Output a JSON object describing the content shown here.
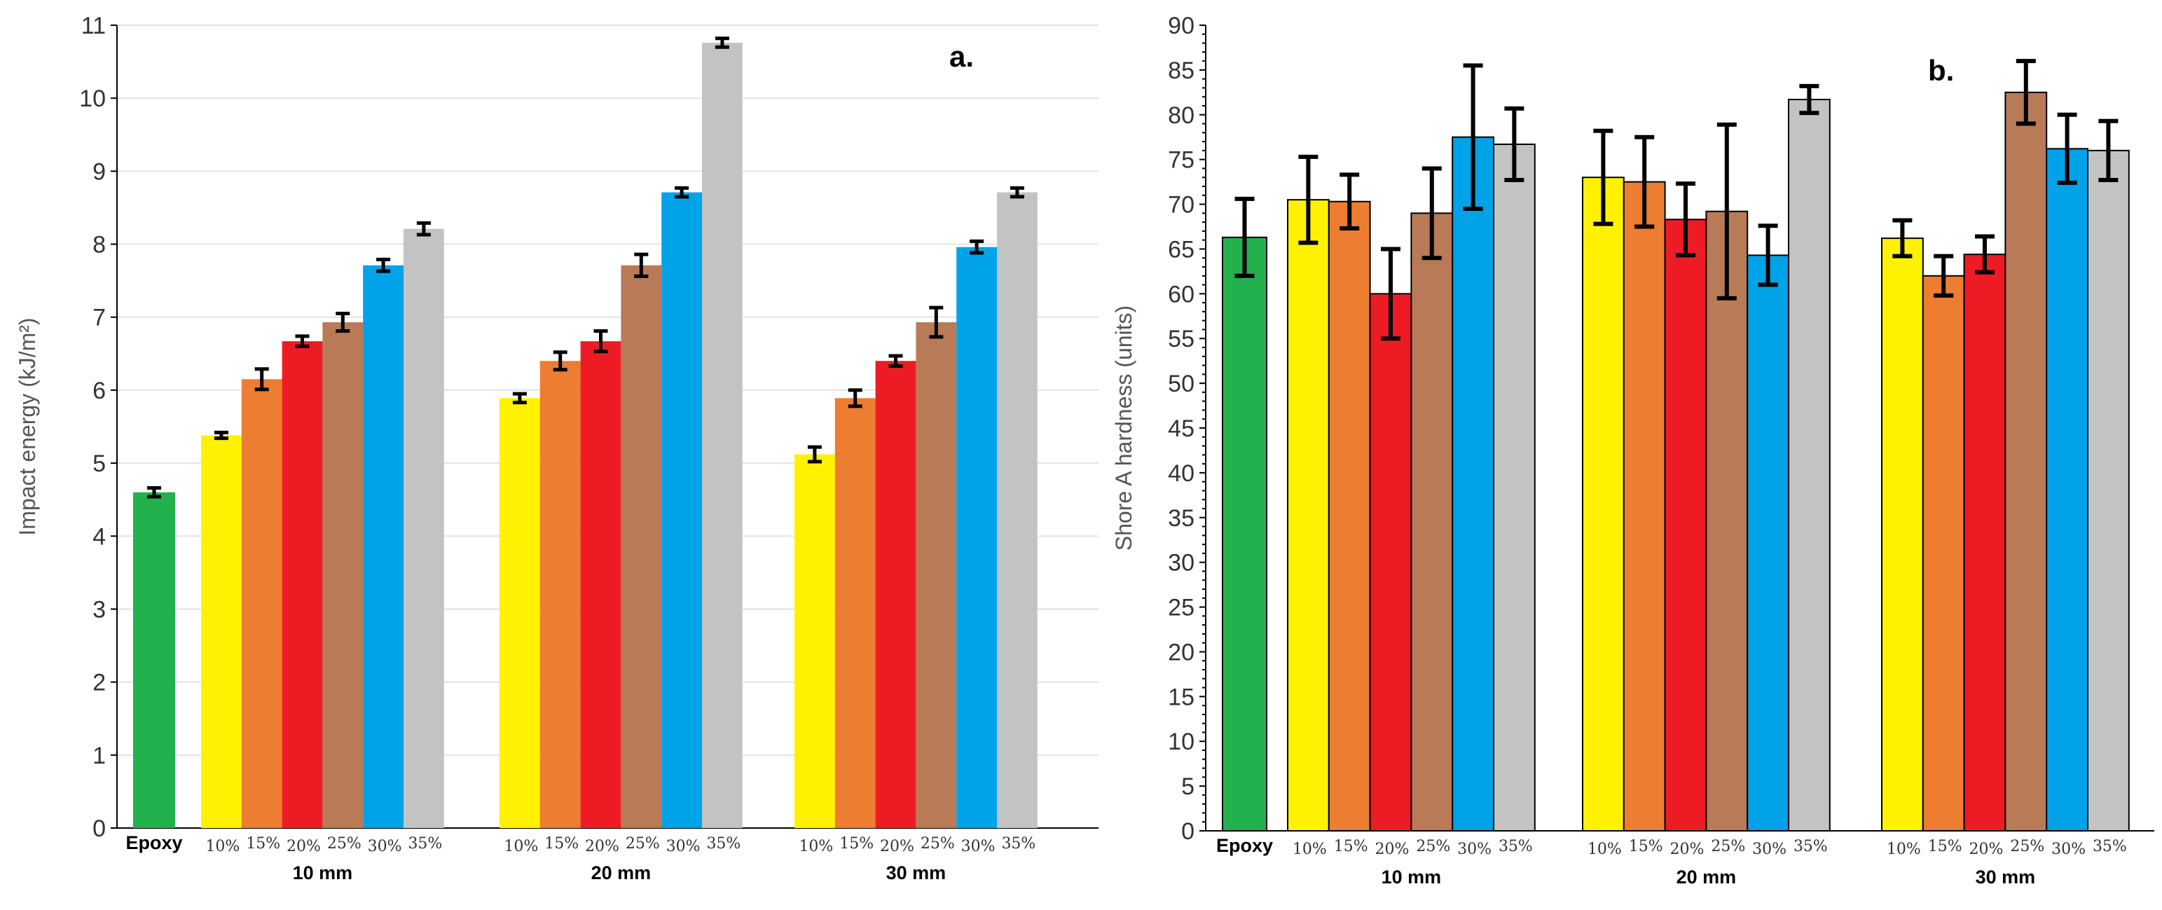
{
  "chart_data": [
    {
      "type": "bar",
      "panel_label": "a.",
      "ylabel": "Impact energy (kJ/m²)",
      "ylim": [
        0,
        11
      ],
      "yticks": [
        0,
        1,
        2,
        3,
        4,
        5,
        6,
        7,
        8,
        9,
        10,
        11
      ],
      "grid": true,
      "baseline": {
        "label": "Epoxy",
        "value": 4.6,
        "error": 0.06,
        "color": "#22b14c"
      },
      "percent_labels": [
        "10%",
        "15%",
        "20%",
        "25%",
        "30%",
        "35%"
      ],
      "percent_colors": [
        "#fff200",
        "#ed7d31",
        "#ed1c24",
        "#b97a57",
        "#00a2e8",
        "#c3c3c3"
      ],
      "groups": [
        {
          "label": "10 mm",
          "values": [
            5.38,
            6.15,
            6.67,
            6.93,
            7.71,
            8.21
          ],
          "errors": [
            0.04,
            0.14,
            0.07,
            0.12,
            0.08,
            0.08
          ]
        },
        {
          "label": "20 mm",
          "values": [
            5.89,
            6.4,
            6.67,
            7.71,
            8.71,
            10.76
          ],
          "errors": [
            0.06,
            0.12,
            0.14,
            0.15,
            0.06,
            0.06
          ]
        },
        {
          "label": "30 mm",
          "values": [
            5.12,
            5.89,
            6.4,
            6.93,
            7.96,
            8.71
          ],
          "errors": [
            0.1,
            0.11,
            0.07,
            0.2,
            0.08,
            0.06
          ]
        }
      ]
    },
    {
      "type": "bar",
      "panel_label": "b.",
      "ylabel": "Shore A hardness (units)",
      "ylim": [
        0,
        90
      ],
      "yticks": [
        0,
        5,
        10,
        15,
        20,
        25,
        30,
        35,
        40,
        45,
        50,
        55,
        60,
        65,
        70,
        75,
        80,
        85,
        90
      ],
      "grid": false,
      "baseline": {
        "label": "Epoxy",
        "value": 66.3,
        "error": 4.3,
        "color": "#22b14c"
      },
      "percent_labels": [
        "10%",
        "15%",
        "20%",
        "25%",
        "30%",
        "35%"
      ],
      "percent_colors": [
        "#fff200",
        "#ed7d31",
        "#ed1c24",
        "#b97a57",
        "#00a2e8",
        "#c3c3c3"
      ],
      "groups": [
        {
          "label": "10 mm",
          "values": [
            70.5,
            70.3,
            60.0,
            69.0,
            77.5,
            76.7
          ],
          "errors": [
            4.8,
            3.0,
            5.0,
            5.0,
            8.0,
            4.0
          ]
        },
        {
          "label": "20 mm",
          "values": [
            73.0,
            72.5,
            68.3,
            69.2,
            64.3,
            81.7
          ],
          "errors": [
            5.2,
            5.0,
            4.0,
            9.7,
            3.3,
            1.5
          ]
        },
        {
          "label": "30 mm",
          "values": [
            66.2,
            62.0,
            64.4,
            82.5,
            76.2,
            76.0
          ],
          "errors": [
            2.0,
            2.2,
            2.0,
            3.5,
            3.8,
            3.3
          ]
        }
      ]
    }
  ]
}
